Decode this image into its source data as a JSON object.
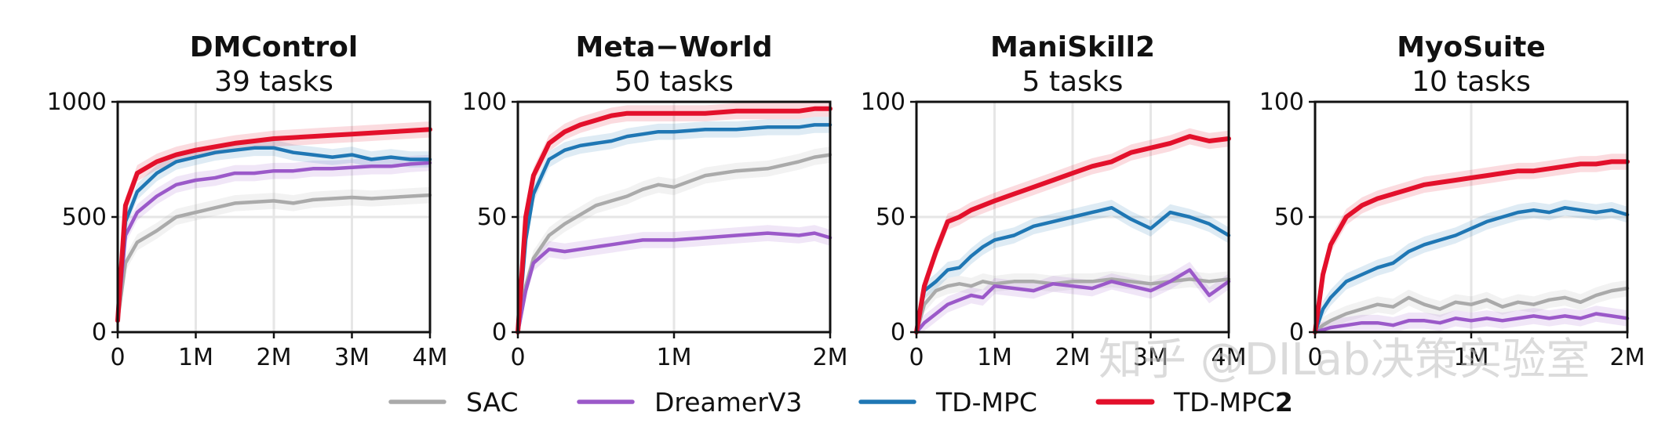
{
  "chart_data": [
    {
      "type": "line",
      "title": "DMControl",
      "subtitle": "39 tasks",
      "xlim": [
        0,
        4
      ],
      "ylim": [
        0,
        1000
      ],
      "xticks": [
        0,
        1,
        2,
        3,
        4
      ],
      "xticklabels": [
        "0",
        "1M",
        "2M",
        "3M",
        "4M"
      ],
      "yticks": [
        0,
        500,
        1000
      ],
      "yticklabels": [
        "0",
        "500",
        "1000"
      ],
      "grid": true,
      "x": [
        0,
        0.1,
        0.25,
        0.5,
        0.75,
        1.0,
        1.25,
        1.5,
        1.75,
        2.0,
        2.25,
        2.5,
        2.75,
        3.0,
        3.25,
        3.5,
        3.75,
        4.0
      ],
      "series": [
        {
          "name": "SAC",
          "color": "#aaaaaa",
          "values": [
            50,
            300,
            390,
            440,
            500,
            520,
            540,
            560,
            565,
            570,
            560,
            575,
            580,
            585,
            580,
            585,
            590,
            595
          ]
        },
        {
          "name": "DreamerV3",
          "color": "#9b59c9",
          "values": [
            50,
            420,
            520,
            590,
            640,
            660,
            670,
            690,
            690,
            700,
            700,
            710,
            710,
            715,
            720,
            720,
            730,
            735
          ]
        },
        {
          "name": "TD-MPC",
          "color": "#1f77b4",
          "values": [
            50,
            480,
            610,
            690,
            740,
            760,
            780,
            790,
            800,
            800,
            780,
            770,
            760,
            770,
            750,
            760,
            750,
            750
          ]
        },
        {
          "name": "TD-MPC2",
          "color": "#e3102b",
          "values": [
            50,
            550,
            690,
            740,
            770,
            790,
            805,
            820,
            830,
            840,
            845,
            850,
            855,
            860,
            865,
            870,
            875,
            880
          ]
        }
      ]
    },
    {
      "type": "line",
      "title": "Meta−World",
      "subtitle": "50 tasks",
      "xlim": [
        0,
        2
      ],
      "ylim": [
        0,
        100
      ],
      "xticks": [
        0,
        1,
        2
      ],
      "xticklabels": [
        "0",
        "1M",
        "2M"
      ],
      "yticks": [
        0,
        50,
        100
      ],
      "yticklabels": [
        "0",
        "50",
        "100"
      ],
      "grid": true,
      "x": [
        0,
        0.05,
        0.1,
        0.2,
        0.3,
        0.4,
        0.5,
        0.6,
        0.7,
        0.8,
        0.9,
        1.0,
        1.2,
        1.4,
        1.6,
        1.8,
        1.9,
        2.0
      ],
      "series": [
        {
          "name": "SAC",
          "color": "#aaaaaa",
          "values": [
            0,
            20,
            32,
            42,
            47,
            51,
            55,
            57,
            59,
            62,
            64,
            63,
            68,
            70,
            71,
            74,
            76,
            77
          ]
        },
        {
          "name": "DreamerV3",
          "color": "#9b59c9",
          "values": [
            0,
            18,
            30,
            36,
            35,
            36,
            37,
            38,
            39,
            40,
            40,
            40,
            41,
            42,
            43,
            42,
            43,
            41
          ]
        },
        {
          "name": "TD-MPC",
          "color": "#1f77b4",
          "values": [
            0,
            40,
            60,
            75,
            79,
            81,
            82,
            83,
            85,
            86,
            87,
            87,
            88,
            88,
            89,
            89,
            90,
            90
          ]
        },
        {
          "name": "TD-MPC2",
          "color": "#e3102b",
          "values": [
            0,
            50,
            68,
            82,
            87,
            90,
            92,
            94,
            95,
            95,
            95,
            95,
            95,
            96,
            96,
            96,
            97,
            97
          ]
        }
      ]
    },
    {
      "type": "line",
      "title": "ManiSkill2",
      "subtitle": "5 tasks",
      "xlim": [
        0,
        4
      ],
      "ylim": [
        0,
        100
      ],
      "xticks": [
        0,
        1,
        2,
        3,
        4
      ],
      "xticklabels": [
        "0",
        "1M",
        "2M",
        "3M",
        "4M"
      ],
      "yticks": [
        0,
        50,
        100
      ],
      "yticklabels": [
        "0",
        "50",
        "100"
      ],
      "grid": true,
      "x": [
        0,
        0.1,
        0.25,
        0.4,
        0.55,
        0.7,
        0.85,
        1.0,
        1.25,
        1.5,
        1.75,
        2.0,
        2.25,
        2.5,
        2.75,
        3.0,
        3.25,
        3.5,
        3.75,
        4.0
      ],
      "series": [
        {
          "name": "SAC",
          "color": "#aaaaaa",
          "values": [
            0,
            12,
            18,
            20,
            21,
            20,
            22,
            21,
            22,
            22,
            21,
            22,
            22,
            23,
            22,
            21,
            22,
            23,
            22,
            23
          ]
        },
        {
          "name": "DreamerV3",
          "color": "#9b59c9",
          "values": [
            0,
            4,
            8,
            12,
            14,
            16,
            15,
            20,
            19,
            18,
            21,
            20,
            19,
            22,
            20,
            18,
            22,
            27,
            16,
            22
          ]
        },
        {
          "name": "TD-MPC",
          "color": "#1f77b4",
          "values": [
            0,
            18,
            22,
            27,
            28,
            33,
            37,
            40,
            42,
            46,
            48,
            50,
            52,
            54,
            49,
            45,
            52,
            50,
            47,
            42
          ]
        },
        {
          "name": "TD-MPC2",
          "color": "#e3102b",
          "values": [
            0,
            20,
            35,
            48,
            50,
            53,
            55,
            57,
            60,
            63,
            66,
            69,
            72,
            74,
            78,
            80,
            82,
            85,
            83,
            84
          ]
        }
      ]
    },
    {
      "type": "line",
      "title": "MyoSuite",
      "subtitle": "10 tasks",
      "xlim": [
        0,
        2
      ],
      "ylim": [
        0,
        100
      ],
      "xticks": [
        0,
        1,
        2
      ],
      "xticklabels": [
        "0",
        "1M",
        "2M"
      ],
      "yticks": [
        0,
        50,
        100
      ],
      "yticklabels": [
        "0",
        "50",
        "100"
      ],
      "grid": true,
      "x": [
        0,
        0.05,
        0.1,
        0.2,
        0.3,
        0.4,
        0.5,
        0.6,
        0.7,
        0.8,
        0.9,
        1.0,
        1.1,
        1.2,
        1.3,
        1.4,
        1.5,
        1.6,
        1.7,
        1.8,
        1.9,
        2.0
      ],
      "series": [
        {
          "name": "SAC",
          "color": "#aaaaaa",
          "values": [
            0,
            3,
            5,
            8,
            10,
            12,
            11,
            15,
            12,
            10,
            13,
            12,
            14,
            11,
            13,
            12,
            14,
            15,
            13,
            16,
            18,
            19
          ]
        },
        {
          "name": "DreamerV3",
          "color": "#9b59c9",
          "values": [
            0,
            1,
            2,
            3,
            4,
            4,
            3,
            5,
            5,
            4,
            6,
            5,
            6,
            5,
            6,
            7,
            6,
            7,
            6,
            8,
            7,
            6
          ]
        },
        {
          "name": "TD-MPC",
          "color": "#1f77b4",
          "values": [
            0,
            10,
            15,
            22,
            25,
            28,
            30,
            35,
            38,
            40,
            42,
            45,
            48,
            50,
            52,
            53,
            52,
            54,
            53,
            52,
            53,
            51
          ]
        },
        {
          "name": "TD-MPC2",
          "color": "#e3102b",
          "values": [
            0,
            25,
            38,
            50,
            55,
            58,
            60,
            62,
            64,
            65,
            66,
            67,
            68,
            69,
            70,
            70,
            71,
            72,
            73,
            73,
            74,
            74
          ]
        }
      ]
    }
  ],
  "legend": {
    "placement": "bottom-center",
    "items": [
      {
        "label": "SAC",
        "label_bold_suffix": "",
        "color": "#aaaaaa"
      },
      {
        "label": "DreamerV3",
        "label_bold_suffix": "",
        "color": "#9b59c9"
      },
      {
        "label": "TD-MPC",
        "label_bold_suffix": "",
        "color": "#1f77b4"
      },
      {
        "label": "TD-MPC",
        "label_bold_suffix": "2",
        "color": "#e3102b"
      }
    ]
  },
  "watermark": "知乎 @DILab决策实验室"
}
